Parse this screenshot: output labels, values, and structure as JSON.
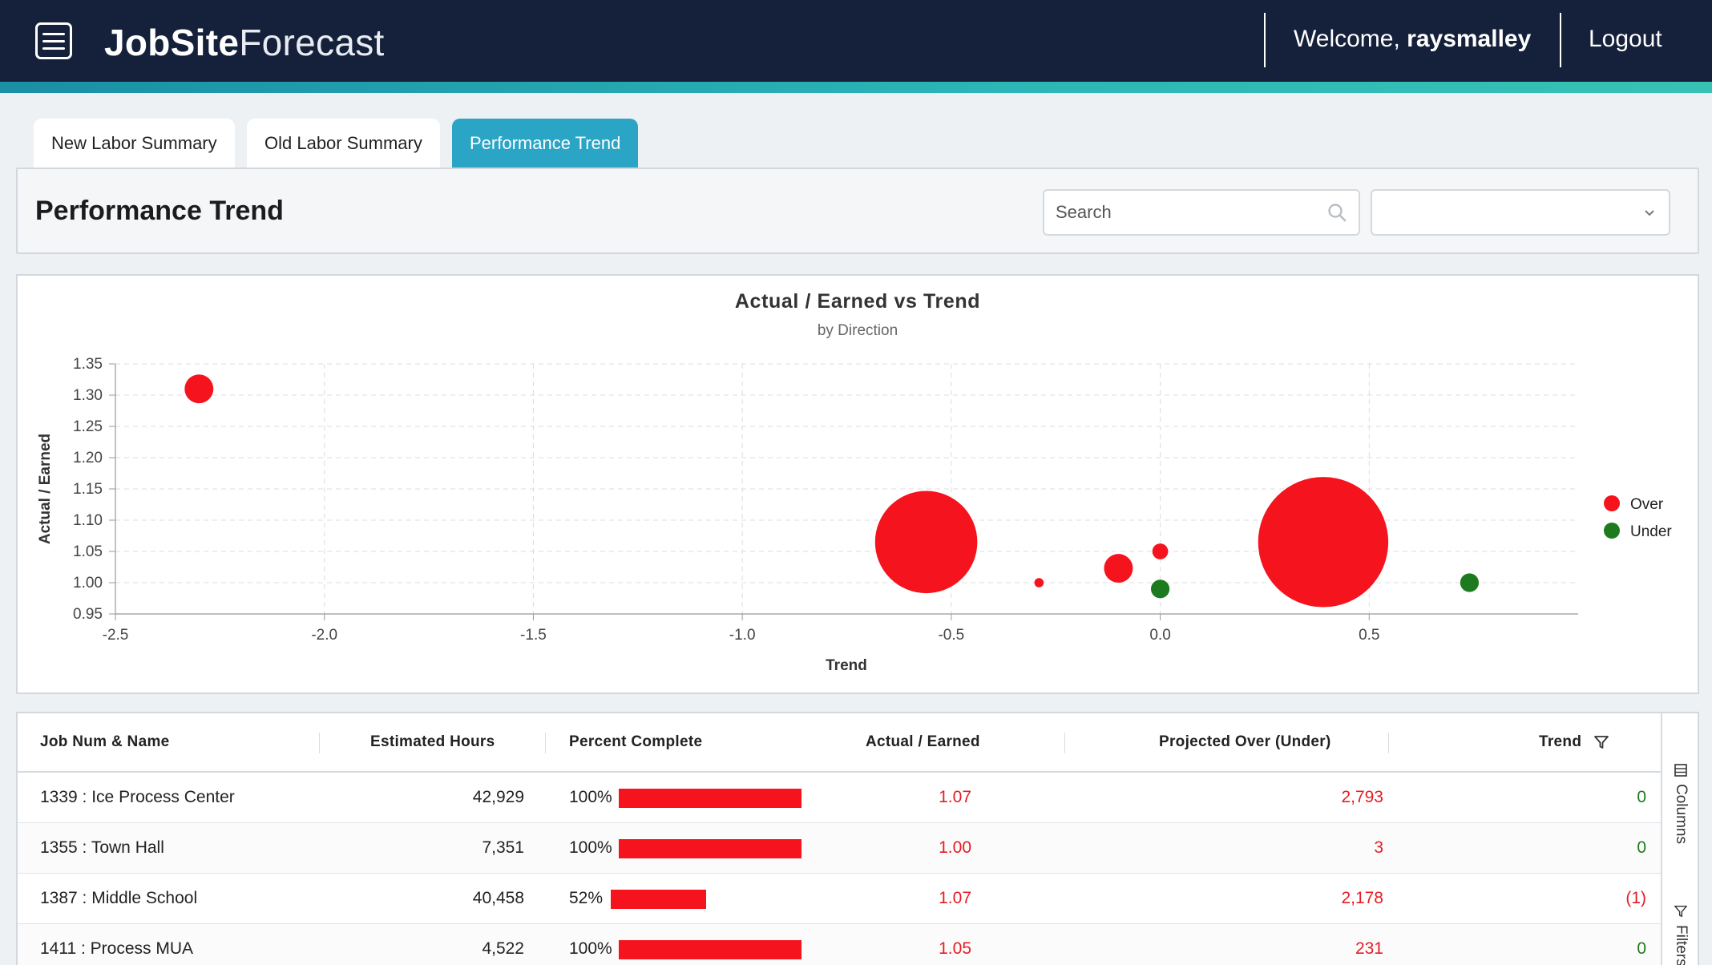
{
  "header": {
    "brand_bold": "JobSite",
    "brand_light": "Forecast",
    "welcome_prefix": "Welcome, ",
    "username": "raysmalley",
    "logout_label": "Logout"
  },
  "tabs": [
    {
      "label": "New Labor Summary",
      "active": false
    },
    {
      "label": "Old Labor Summary",
      "active": false
    },
    {
      "label": "Performance Trend",
      "active": true
    }
  ],
  "page": {
    "title": "Performance Trend",
    "search_placeholder": "Search",
    "select_value": ""
  },
  "colors": {
    "over": "#f5141e",
    "under": "#1e7a1e",
    "accent": "#2aa5c6",
    "header_bg": "#15213a"
  },
  "chart_data": {
    "type": "scatter",
    "title": "Actual / Earned vs Trend",
    "subtitle": "by Direction",
    "xlabel": "Trend",
    "ylabel": "Actual / Earned",
    "xlim": [
      -2.5,
      1.0
    ],
    "ylim": [
      0.95,
      1.35
    ],
    "x_ticks": [
      "-2.5",
      "-2.0",
      "-1.5",
      "-1.0",
      "-0.5",
      "0.0",
      "0.5"
    ],
    "y_ticks": [
      "0.95",
      "1.00",
      "1.05",
      "1.10",
      "1.15",
      "1.20",
      "1.25",
      "1.30",
      "1.35"
    ],
    "grid": true,
    "legend_position": "right",
    "series": [
      {
        "name": "Over",
        "color": "#f5141e",
        "points": [
          {
            "x": -2.3,
            "y": 1.31,
            "size": 3.1
          },
          {
            "x": -0.56,
            "y": 1.065,
            "size": 11.0
          },
          {
            "x": -0.29,
            "y": 1.0,
            "size": 1.0
          },
          {
            "x": -0.1,
            "y": 1.023,
            "size": 3.1
          },
          {
            "x": 0.0,
            "y": 1.05,
            "size": 1.7
          },
          {
            "x": 0.39,
            "y": 1.065,
            "size": 14.0
          }
        ]
      },
      {
        "name": "Under",
        "color": "#1e7a1e",
        "points": [
          {
            "x": 0.0,
            "y": 0.99,
            "size": 2.0
          },
          {
            "x": 0.74,
            "y": 1.0,
            "size": 2.0
          }
        ]
      }
    ]
  },
  "grid": {
    "columns": {
      "job": "Job Num & Name",
      "est_hours": "Estimated Hours",
      "pct": "Percent Complete",
      "ae": "Actual / Earned",
      "proj": "Projected Over (Under)",
      "trend": "Trend"
    },
    "rows": [
      {
        "job": "1339 : Ice Process Center",
        "est_hours": "42,929",
        "pct_label": "100%",
        "pct": 1.0,
        "ae": "1.07",
        "proj": "2,793",
        "trend": "0",
        "trend_neg": false
      },
      {
        "job": "1355 : Town Hall",
        "est_hours": "7,351",
        "pct_label": "100%",
        "pct": 1.0,
        "ae": "1.00",
        "proj": "3",
        "trend": "0",
        "trend_neg": false
      },
      {
        "job": "1387 : Middle School",
        "est_hours": "40,458",
        "pct_label": "52%",
        "pct": 0.52,
        "ae": "1.07",
        "proj": "2,178",
        "trend": "(1)",
        "trend_neg": true
      },
      {
        "job": "1411 : Process MUA",
        "est_hours": "4,522",
        "pct_label": "100%",
        "pct": 1.0,
        "ae": "1.05",
        "proj": "231",
        "trend": "0",
        "trend_neg": false
      }
    ],
    "side": {
      "columns_label": "Columns",
      "filters_label": "Filters"
    }
  }
}
